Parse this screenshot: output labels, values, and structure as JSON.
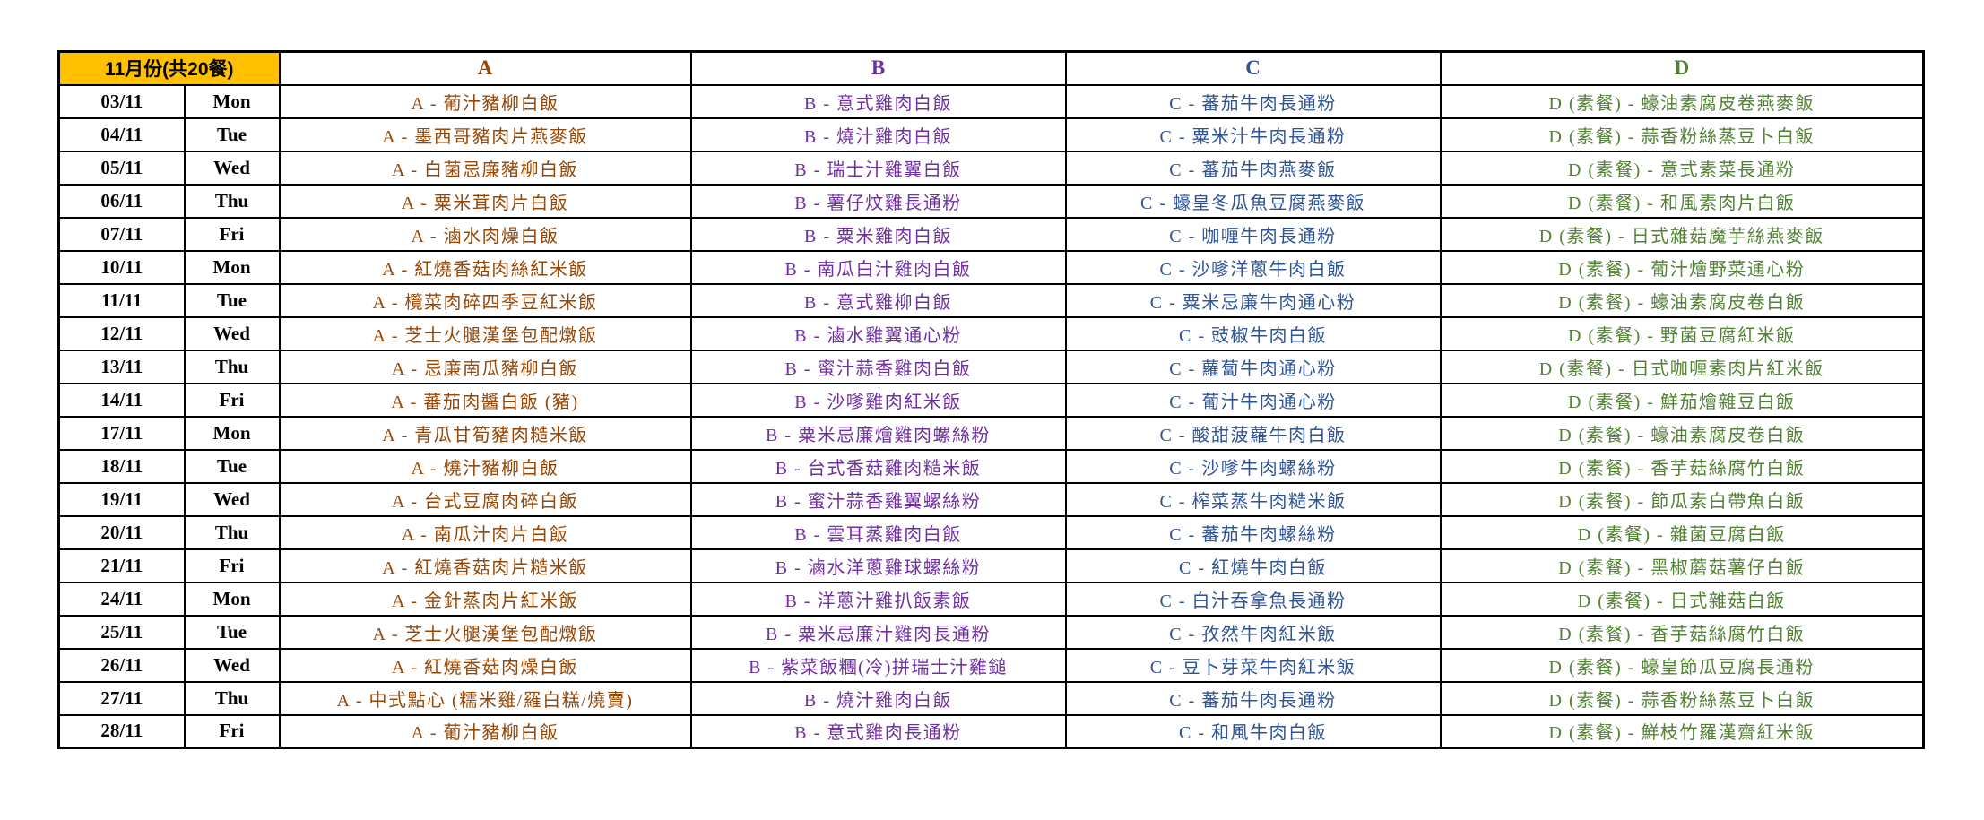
{
  "header": {
    "title": "11月份(共20餐)",
    "columns": [
      "A",
      "B",
      "C",
      "D"
    ]
  },
  "colors": {
    "header_bg": "#FFC000",
    "a": "#974706",
    "b": "#7030A0",
    "c": "#2F5496",
    "d": "#538135",
    "border": "#000000"
  },
  "rows": [
    {
      "date": "03/11",
      "day": "Mon",
      "a": "A - 葡汁豬柳白飯",
      "b": "B - 意式雞肉白飯",
      "c": "C - 蕃茄牛肉長通粉",
      "d": "D (素餐) - 蠔油素腐皮卷燕麥飯"
    },
    {
      "date": "04/11",
      "day": "Tue",
      "a": "A - 墨西哥豬肉片燕麥飯",
      "b": "B - 燒汁雞肉白飯",
      "c": "C - 粟米汁牛肉長通粉",
      "d": "D (素餐) - 蒜香粉絲蒸豆卜白飯"
    },
    {
      "date": "05/11",
      "day": "Wed",
      "a": "A - 白菌忌廉豬柳白飯",
      "b": "B - 瑞士汁雞翼白飯",
      "c": "C - 蕃茄牛肉燕麥飯",
      "d": "D (素餐) - 意式素菜長通粉"
    },
    {
      "date": "06/11",
      "day": "Thu",
      "a": "A - 粟米茸肉片白飯",
      "b": "B - 薯仔炆雞長通粉",
      "c": "C - 蠔皇冬瓜魚豆腐燕麥飯",
      "d": "D (素餐) - 和風素肉片白飯"
    },
    {
      "date": "07/11",
      "day": "Fri",
      "a": "A - 滷水肉燥白飯",
      "b": "B - 粟米雞肉白飯",
      "c": "C - 咖喱牛肉長通粉",
      "d": "D (素餐) - 日式雜菇魔芋絲燕麥飯"
    },
    {
      "date": "10/11",
      "day": "Mon",
      "a": "A - 紅燒香菇肉絲紅米飯",
      "b": "B - 南瓜白汁雞肉白飯",
      "c": "C - 沙嗲洋蔥牛肉白飯",
      "d": "D (素餐) - 葡汁燴野菜通心粉"
    },
    {
      "date": "11/11",
      "day": "Tue",
      "a": "A - 欖菜肉碎四季豆紅米飯",
      "b": "B - 意式雞柳白飯",
      "c": "C - 粟米忌廉牛肉通心粉",
      "d": "D (素餐) - 蠔油素腐皮卷白飯"
    },
    {
      "date": "12/11",
      "day": "Wed",
      "a": "A - 芝士火腿漢堡包配燉飯",
      "b": "B - 滷水雞翼通心粉",
      "c": "C - 豉椒牛肉白飯",
      "d": "D (素餐) - 野菌豆腐紅米飯"
    },
    {
      "date": "13/11",
      "day": "Thu",
      "a": "A - 忌廉南瓜豬柳白飯",
      "b": "B - 蜜汁蒜香雞肉白飯",
      "c": "C - 蘿蔔牛肉通心粉",
      "d": "D (素餐) - 日式咖喱素肉片紅米飯"
    },
    {
      "date": "14/11",
      "day": "Fri",
      "a": "A - 蕃茄肉醬白飯 (豬)",
      "b": "B - 沙嗲雞肉紅米飯",
      "c": "C - 葡汁牛肉通心粉",
      "d": "D (素餐) - 鮮茄燴雜豆白飯"
    },
    {
      "date": "17/11",
      "day": "Mon",
      "a": "A - 青瓜甘筍豬肉糙米飯",
      "b": "B - 粟米忌廉燴雞肉螺絲粉",
      "c": "C - 酸甜菠蘿牛肉白飯",
      "d": "D (素餐) - 蠔油素腐皮卷白飯"
    },
    {
      "date": "18/11",
      "day": "Tue",
      "a": "A - 燒汁豬柳白飯",
      "b": "B - 台式香菇雞肉糙米飯",
      "c": "C - 沙嗲牛肉螺絲粉",
      "d": "D (素餐) - 香芋菇絲腐竹白飯"
    },
    {
      "date": "19/11",
      "day": "Wed",
      "a": "A - 台式豆腐肉碎白飯",
      "b": "B - 蜜汁蒜香雞翼螺絲粉",
      "c": "C - 榨菜蒸牛肉糙米飯",
      "d": "D (素餐) - 節瓜素白帶魚白飯"
    },
    {
      "date": "20/11",
      "day": "Thu",
      "a": "A - 南瓜汁肉片白飯",
      "b": "B - 雲耳蒸雞肉白飯",
      "c": "C - 蕃茄牛肉螺絲粉",
      "d": "D (素餐) - 雜菌豆腐白飯"
    },
    {
      "date": "21/11",
      "day": "Fri",
      "a": "A - 紅燒香菇肉片糙米飯",
      "b": "B - 滷水洋蔥雞球螺絲粉",
      "c": "C - 紅燒牛肉白飯",
      "d": "D (素餐) - 黑椒蘑菇薯仔白飯"
    },
    {
      "date": "24/11",
      "day": "Mon",
      "a": "A - 金針蒸肉片紅米飯",
      "b": "B - 洋蔥汁雞扒飯素飯",
      "c": "C - 白汁吞拿魚長通粉",
      "d": "D (素餐) - 日式雜菇白飯"
    },
    {
      "date": "25/11",
      "day": "Tue",
      "a": "A - 芝士火腿漢堡包配燉飯",
      "b": "B - 粟米忌廉汁雞肉長通粉",
      "c": "C - 孜然牛肉紅米飯",
      "d": "D (素餐) - 香芋菇絲腐竹白飯"
    },
    {
      "date": "26/11",
      "day": "Wed",
      "a": "A - 紅燒香菇肉燥白飯",
      "b": "B - 紫菜飯糰(冷)拼瑞士汁雞鎚",
      "c": "C - 豆卜芽菜牛肉紅米飯",
      "d": "D (素餐) - 蠔皇節瓜豆腐長通粉"
    },
    {
      "date": "27/11",
      "day": "Thu",
      "a": "A - 中式點心 (糯米雞/羅白糕/燒賣)",
      "b": "B - 燒汁雞肉白飯",
      "c": "C - 蕃茄牛肉長通粉",
      "d": "D (素餐) - 蒜香粉絲蒸豆卜白飯"
    },
    {
      "date": "28/11",
      "day": "Fri",
      "a": "A - 葡汁豬柳白飯",
      "b": "B - 意式雞肉長通粉",
      "c": "C - 和風牛肉白飯",
      "d": "D (素餐) - 鮮枝竹羅漢齋紅米飯"
    }
  ]
}
